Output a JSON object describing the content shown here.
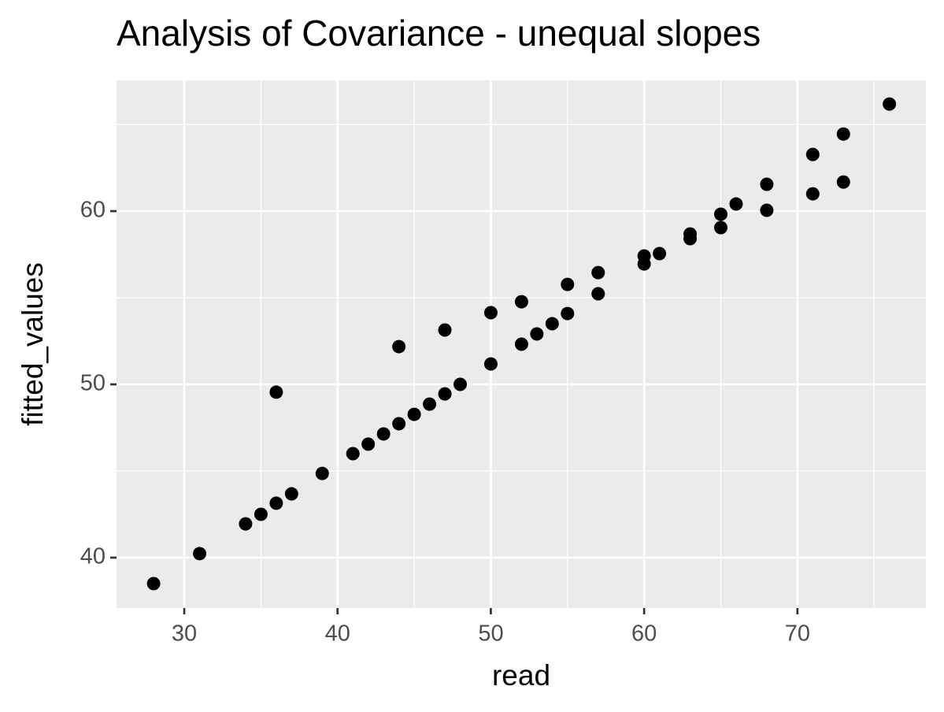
{
  "chart_data": {
    "type": "scatter",
    "title": "Analysis of Covariance - unequal slopes",
    "x_label": "read",
    "y_label": "fitted_values",
    "color": "#000000",
    "x": [
      28,
      31,
      34,
      35,
      36,
      36,
      37,
      39,
      41,
      42,
      43,
      44,
      44,
      45,
      46,
      47,
      47,
      48,
      50,
      50,
      52,
      52,
      53,
      54,
      55,
      55,
      57,
      57,
      60,
      60,
      61,
      63,
      63,
      65,
      65,
      66,
      68,
      68,
      71,
      71,
      73,
      73,
      76
    ],
    "values": [
      38.5,
      40.23,
      41.95,
      42.5,
      43.14,
      49.55,
      43.68,
      44.86,
      46.0,
      46.55,
      47.14,
      47.73,
      52.18,
      48.27,
      48.86,
      49.45,
      53.14,
      50.0,
      51.18,
      54.14,
      52.32,
      54.77,
      52.91,
      53.5,
      54.09,
      55.77,
      55.23,
      56.45,
      56.95,
      57.41,
      57.55,
      58.41,
      58.68,
      59.05,
      59.82,
      60.41,
      60.05,
      61.55,
      61.0,
      63.27,
      61.68,
      64.45,
      66.18
    ],
    "xlim": [
      25.58,
      78.38
    ],
    "ylim": [
      37.09,
      67.55
    ],
    "xticks": [
      30,
      40,
      50,
      60,
      70
    ],
    "yticks": [
      40,
      50,
      60
    ],
    "xminor": [
      35,
      45,
      55,
      65,
      75
    ],
    "yminor": [
      45,
      55,
      65
    ],
    "grid": true
  }
}
